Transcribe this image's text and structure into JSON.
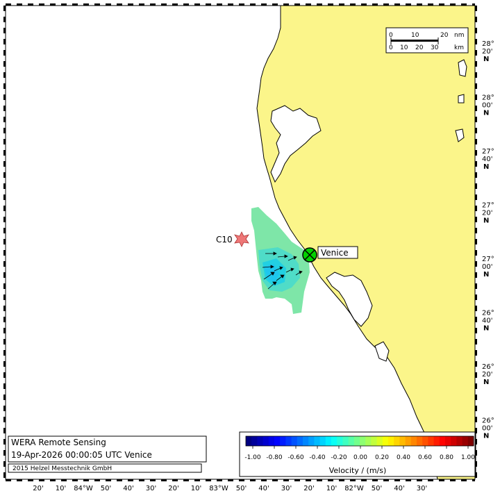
{
  "colors": {
    "land": "#fbf58a",
    "sea": "#ffffff",
    "coast": "#000000",
    "station_green": "#00d200",
    "c10_star": "#ee7777"
  },
  "stations": {
    "venice": {
      "label": "Venice",
      "icon": "circle-x-station-icon"
    },
    "c10": {
      "label": "C10",
      "icon": "star-station-icon"
    }
  },
  "scale_bar": {
    "nm_ticks": [
      "0",
      "10",
      "20"
    ],
    "nm_unit": "nm",
    "km_ticks": [
      "0",
      "10",
      "20",
      "30"
    ],
    "km_unit": "km"
  },
  "longitude_labels": [
    "20'",
    "10'",
    "84°W",
    "50'",
    "40'",
    "30'",
    "20'",
    "10'",
    "83°W",
    "50'",
    "40'",
    "30'",
    "20'",
    "10'",
    "82°W",
    "50'",
    "40'",
    "30'"
  ],
  "latitude_labels": [
    {
      "deg": "28°",
      "min": "20'",
      "hem": "N"
    },
    {
      "deg": "28°",
      "min": "00'",
      "hem": "N"
    },
    {
      "deg": "27°",
      "min": "40'",
      "hem": "N"
    },
    {
      "deg": "27°",
      "min": "20'",
      "hem": "N"
    },
    {
      "deg": "27°",
      "min": "00'",
      "hem": "N"
    },
    {
      "deg": "26°",
      "min": "40'",
      "hem": "N"
    },
    {
      "deg": "26°",
      "min": "20'",
      "hem": "N"
    },
    {
      "deg": "26°",
      "min": "00'",
      "hem": "N"
    }
  ],
  "info_box": {
    "title": "WERA Remote Sensing",
    "timestamp": "19-Apr-2026 00:00:05 UTC  Venice",
    "copyright": "2015 Helzel Messtechnik GmbH"
  },
  "colorbar": {
    "tick_labels": [
      "-1.00",
      "-0.80",
      "-0.60",
      "-0.40",
      "-0.20",
      "0.00",
      "0.20",
      "0.40",
      "0.60",
      "0.80",
      "1.00"
    ],
    "min": -1.0,
    "max": 1.0,
    "label": "Velocity / (m/s)"
  }
}
